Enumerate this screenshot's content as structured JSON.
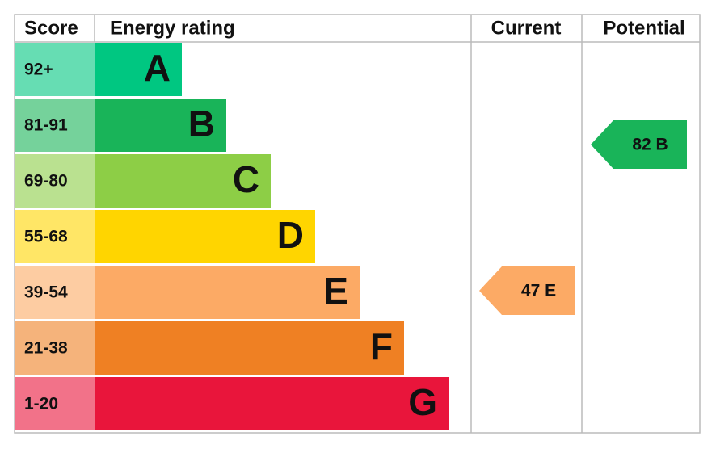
{
  "header": {
    "score": "Score",
    "rating": "Energy rating",
    "current": "Current",
    "potential": "Potential"
  },
  "bands": [
    {
      "score": "92+",
      "letter": "A",
      "color": "#00c781"
    },
    {
      "score": "81-91",
      "letter": "B",
      "color": "#19b459"
    },
    {
      "score": "69-80",
      "letter": "C",
      "color": "#8dce46"
    },
    {
      "score": "55-68",
      "letter": "D",
      "color": "#ffd500"
    },
    {
      "score": "39-54",
      "letter": "E",
      "color": "#fcaa65"
    },
    {
      "score": "21-38",
      "letter": "F",
      "color": "#ef8023"
    },
    {
      "score": "1-20",
      "letter": "G",
      "color": "#e9153b"
    }
  ],
  "current": {
    "label": "47 E",
    "color": "#fcaa65"
  },
  "potential": {
    "label": "82 B",
    "color": "#19b459"
  }
}
